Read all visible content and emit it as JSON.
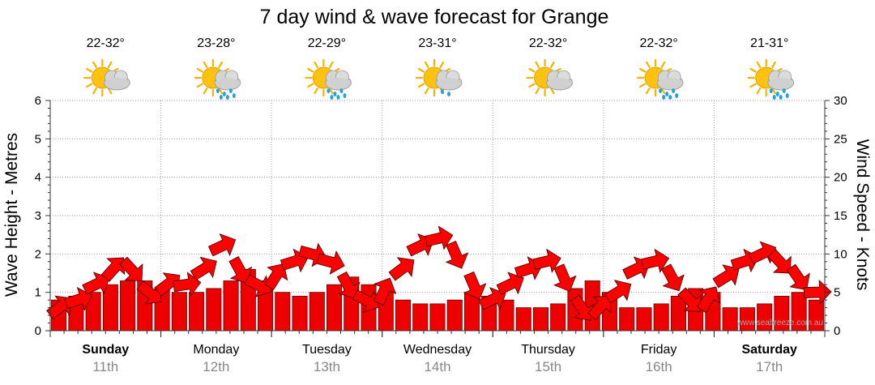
{
  "chart_data": {
    "type": "bar",
    "title": "7 day wind & wave forecast for Grange",
    "ylabel_left": "Wave Height - Metres",
    "ylabel_right": "Wind Speed - Knots",
    "ylim_left": [
      0,
      6
    ],
    "ylim_right": [
      0,
      30
    ],
    "yticks_left": [
      "0",
      "1",
      "2",
      "3",
      "4",
      "5",
      "6"
    ],
    "yticks_right": [
      "0",
      "5",
      "10",
      "15",
      "20",
      "25",
      "30"
    ],
    "grid": true,
    "credit": "www.seabreeze.com.au",
    "days": [
      {
        "day": "Sunday",
        "date": "11th",
        "temp": "22-32°",
        "icon": "sun-cloud-icon",
        "bold": true
      },
      {
        "day": "Monday",
        "date": "12th",
        "temp": "23-28°",
        "icon": "sun-cloud-rain-icon",
        "bold": false
      },
      {
        "day": "Tuesday",
        "date": "13th",
        "temp": "22-29°",
        "icon": "sun-cloud-rain-icon",
        "bold": false
      },
      {
        "day": "Wednesday",
        "date": "14th",
        "temp": "23-31°",
        "icon": "sun-cloud-drizzle-icon",
        "bold": false
      },
      {
        "day": "Thursday",
        "date": "15th",
        "temp": "22-32°",
        "icon": "sun-cloud-icon",
        "bold": false
      },
      {
        "day": "Friday",
        "date": "16th",
        "temp": "22-32°",
        "icon": "sun-cloud-rain-icon",
        "bold": false
      },
      {
        "day": "Saturday",
        "date": "17th",
        "temp": "21-31°",
        "icon": "sun-cloud-rain-icon",
        "bold": true
      }
    ],
    "wave_height_m": [
      0.8,
      0.9,
      1.0,
      1.2,
      1.3,
      1.3,
      1.1,
      1.0,
      1.0,
      1.1,
      1.3,
      1.6,
      1.3,
      1.0,
      0.9,
      1.0,
      1.2,
      1.4,
      1.2,
      1.0,
      0.8,
      0.7,
      0.7,
      0.8,
      1.0,
      0.9,
      0.8,
      0.6,
      0.6,
      0.7,
      1.1,
      1.3,
      1.0,
      0.6,
      0.6,
      0.7,
      0.9,
      1.1,
      1.0,
      0.6,
      0.6,
      0.7,
      0.9,
      1.0,
      0.8
    ],
    "wind_speed_kn": [
      3,
      4,
      6,
      8,
      8,
      5,
      6,
      6,
      8,
      11,
      8,
      6,
      7,
      9,
      10,
      9,
      6,
      4,
      5,
      8,
      11,
      12,
      10,
      6,
      4,
      6,
      8,
      9,
      7,
      3,
      3,
      5,
      8,
      9,
      7,
      4,
      4,
      7,
      9,
      10,
      9,
      7,
      5
    ]
  }
}
